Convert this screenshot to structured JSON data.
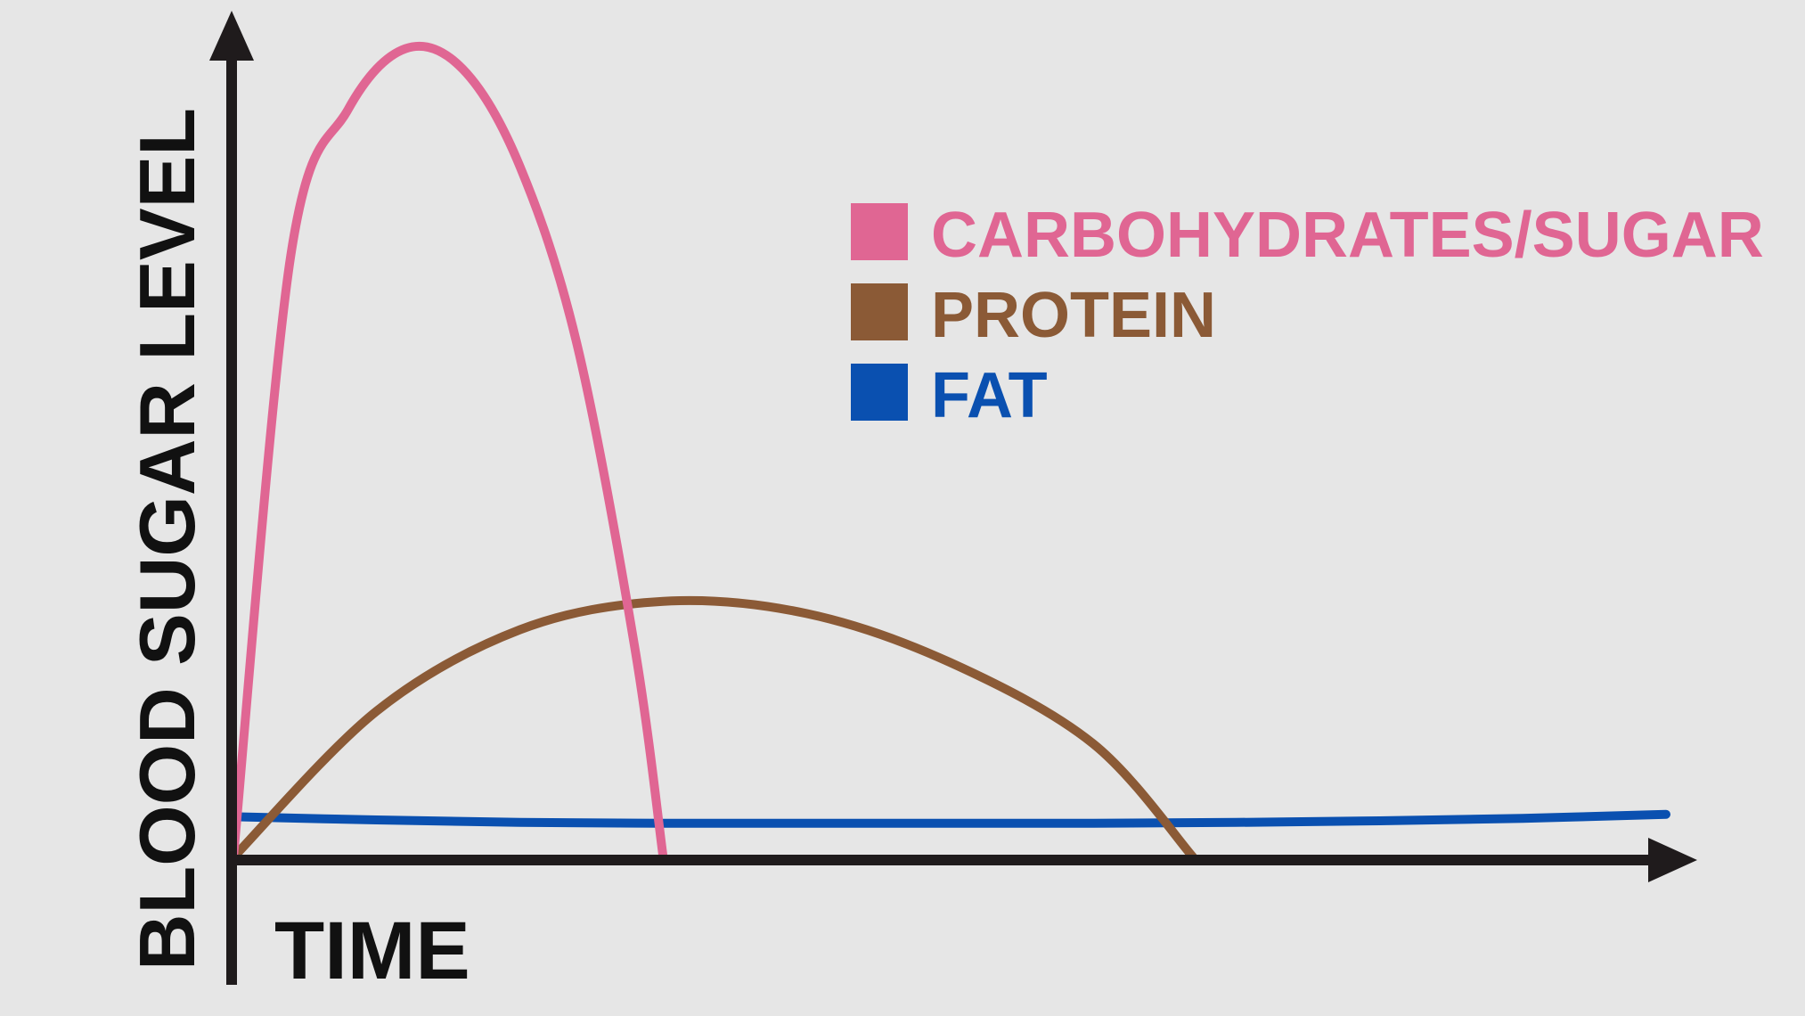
{
  "chart_data": {
    "type": "line",
    "title": "",
    "xlabel": "TIME",
    "ylabel": "BLOOD SUGAR LEVEL",
    "xlim": [
      0,
      100
    ],
    "ylim": [
      0,
      100
    ],
    "grid": false,
    "ticks": false,
    "legend_position": "top-right",
    "series": [
      {
        "name": "CARBOHYDRATES/SUGAR",
        "color": "#e06693",
        "x": [
          0,
          4,
          8,
          12,
          16,
          20,
          24,
          28,
          30
        ],
        "y": [
          0,
          74,
          92,
          99.5,
          97,
          85,
          63,
          26,
          0
        ]
      },
      {
        "name": "PROTEIN",
        "color": "#8b5a36",
        "x": [
          0,
          10,
          20,
          30,
          40,
          50,
          60,
          67
        ],
        "y": [
          0,
          18,
          28,
          31.5,
          30,
          24,
          14,
          0
        ]
      },
      {
        "name": "FAT",
        "color": "#0a50b0",
        "x": [
          0,
          10,
          20,
          30,
          40,
          50,
          60,
          70,
          80,
          90,
          100
        ],
        "y": [
          5,
          4.6,
          4.3,
          4.2,
          4.2,
          4.2,
          4.2,
          4.3,
          4.5,
          4.8,
          5.3
        ]
      }
    ]
  }
}
